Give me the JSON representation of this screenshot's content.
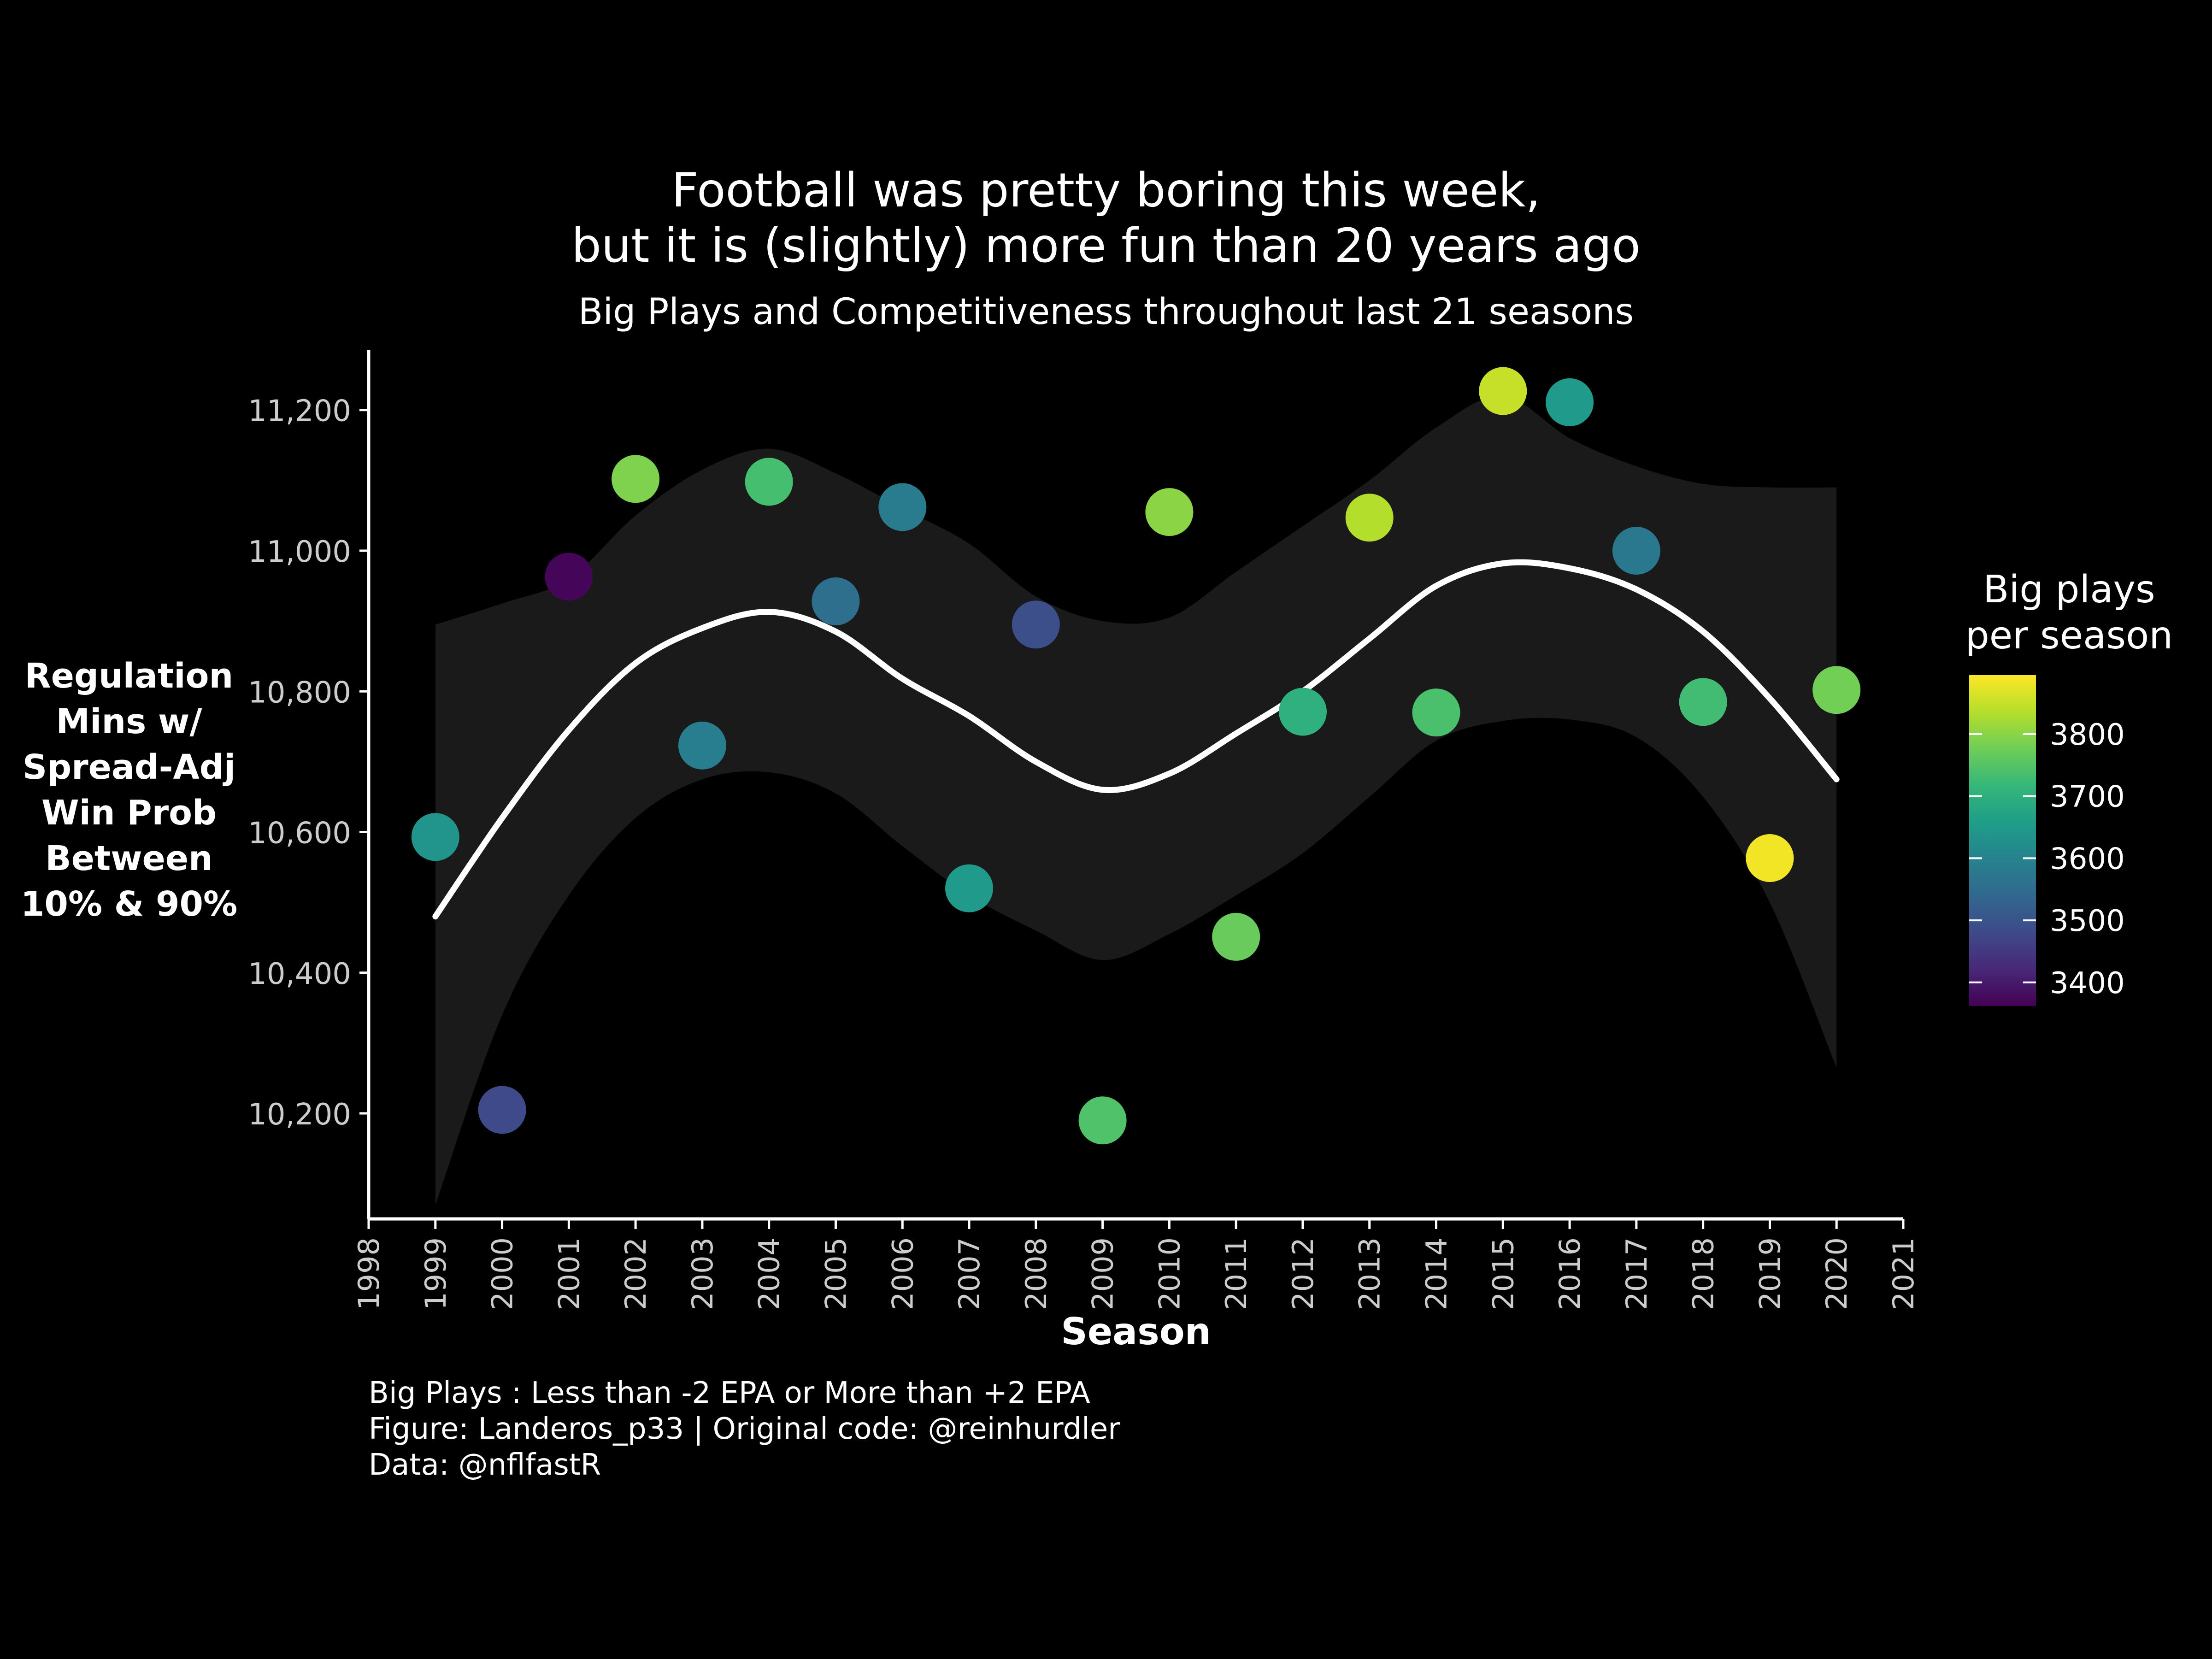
{
  "title_lines": [
    "Football was pretty boring this week,",
    "but it is (slightly) more fun than 20 years ago"
  ],
  "subtitle": "Big Plays and Competitiveness throughout last 21 seasons",
  "caption_lines": [
    "Big Plays : Less than -2 EPA or More than +2 EPA",
    "Figure: Landeros_p33 | Original code: @reinhurdler",
    "Data: @nflfastR"
  ],
  "colors": {
    "background": "#000000",
    "text": "#ffffff",
    "tick_text": "#cccccc",
    "smooth_line": "#ffffff",
    "confidence_band": "#1a1a1a",
    "viridis": [
      "#440154",
      "#482878",
      "#3e4a89",
      "#31688e",
      "#26828e",
      "#1f9e89",
      "#35b779",
      "#6ece58",
      "#b5de2b",
      "#fde725"
    ]
  },
  "chart_data": {
    "type": "scatter",
    "title": "Football was pretty boring this week, but it is (slightly) more fun than 20 years ago",
    "subtitle": "Big Plays and Competitiveness throughout last 21 seasons",
    "xlabel": "Season",
    "ylabel_lines": [
      "Regulation",
      "Mins w/",
      "Spread-Adj",
      "Win Prob",
      "Between",
      "10% & 90%"
    ],
    "xlim": [
      1998,
      2021
    ],
    "ylim": [
      10050,
      11285
    ],
    "x_ticks": [
      1998,
      1999,
      2000,
      2001,
      2002,
      2003,
      2004,
      2005,
      2006,
      2007,
      2008,
      2009,
      2010,
      2011,
      2012,
      2013,
      2014,
      2015,
      2016,
      2017,
      2018,
      2019,
      2020,
      2021
    ],
    "y_ticks": [
      10200,
      10400,
      10600,
      10800,
      11000,
      11200
    ],
    "y_tick_labels": [
      "10,200",
      "10,400",
      "10,600",
      "10,800",
      "11,000",
      "11,200"
    ],
    "grid": false,
    "legend": {
      "title_lines": [
        "Big plays",
        "per season"
      ],
      "placement": "right",
      "min": 3362,
      "max": 3895,
      "ticks": [
        3400,
        3500,
        3600,
        3700,
        3800
      ],
      "tick_labels": [
        "3400",
        "3500",
        "3600",
        "3700",
        "3800"
      ]
    },
    "points": [
      {
        "season": 1999,
        "minutes": 10593,
        "big_plays": 3640
      },
      {
        "season": 2000,
        "minutes": 10205,
        "big_plays": 3480
      },
      {
        "season": 2001,
        "minutes": 10963,
        "big_plays": 3370
      },
      {
        "season": 2002,
        "minutes": 11102,
        "big_plays": 3790
      },
      {
        "season": 2003,
        "minutes": 10723,
        "big_plays": 3590
      },
      {
        "season": 2004,
        "minutes": 11098,
        "big_plays": 3735
      },
      {
        "season": 2005,
        "minutes": 10928,
        "big_plays": 3555
      },
      {
        "season": 2006,
        "minutes": 11062,
        "big_plays": 3585
      },
      {
        "season": 2007,
        "minutes": 10520,
        "big_plays": 3650
      },
      {
        "season": 2008,
        "minutes": 10895,
        "big_plays": 3490
      },
      {
        "season": 2009,
        "minutes": 10190,
        "big_plays": 3745
      },
      {
        "season": 2010,
        "minutes": 11055,
        "big_plays": 3800
      },
      {
        "season": 2011,
        "minutes": 10451,
        "big_plays": 3770
      },
      {
        "season": 2012,
        "minutes": 10771,
        "big_plays": 3700
      },
      {
        "season": 2013,
        "minutes": 11047,
        "big_plays": 3835
      },
      {
        "season": 2014,
        "minutes": 10770,
        "big_plays": 3740
      },
      {
        "season": 2015,
        "minutes": 11227,
        "big_plays": 3850
      },
      {
        "season": 2016,
        "minutes": 11211,
        "big_plays": 3650
      },
      {
        "season": 2017,
        "minutes": 11000,
        "big_plays": 3575
      },
      {
        "season": 2018,
        "minutes": 10785,
        "big_plays": 3730
      },
      {
        "season": 2019,
        "minutes": 10563,
        "big_plays": 3885
      },
      {
        "season": 2020,
        "minutes": 10802,
        "big_plays": 3780
      }
    ],
    "smooth": {
      "x": [
        1999,
        2000,
        2001,
        2002,
        2003,
        2004,
        2005,
        2006,
        2007,
        2008,
        2009,
        2010,
        2011,
        2012,
        2013,
        2014,
        2015,
        2016,
        2017,
        2018,
        2019,
        2020
      ],
      "y": [
        10480,
        10620,
        10745,
        10840,
        10890,
        10913,
        10885,
        10818,
        10765,
        10700,
        10660,
        10683,
        10740,
        10800,
        10875,
        10950,
        10982,
        10975,
        10945,
        10885,
        10790,
        10675
      ],
      "lower": [
        10070,
        10340,
        10510,
        10620,
        10675,
        10685,
        10655,
        10580,
        10510,
        10460,
        10418,
        10455,
        10510,
        10570,
        10650,
        10730,
        10758,
        10760,
        10735,
        10650,
        10500,
        10265
      ],
      "upper": [
        10895,
        10925,
        10960,
        11050,
        11115,
        11145,
        11110,
        11060,
        11010,
        10935,
        10900,
        10905,
        10970,
        11035,
        11100,
        11175,
        11220,
        11160,
        11120,
        11095,
        11090,
        11090
      ]
    }
  }
}
